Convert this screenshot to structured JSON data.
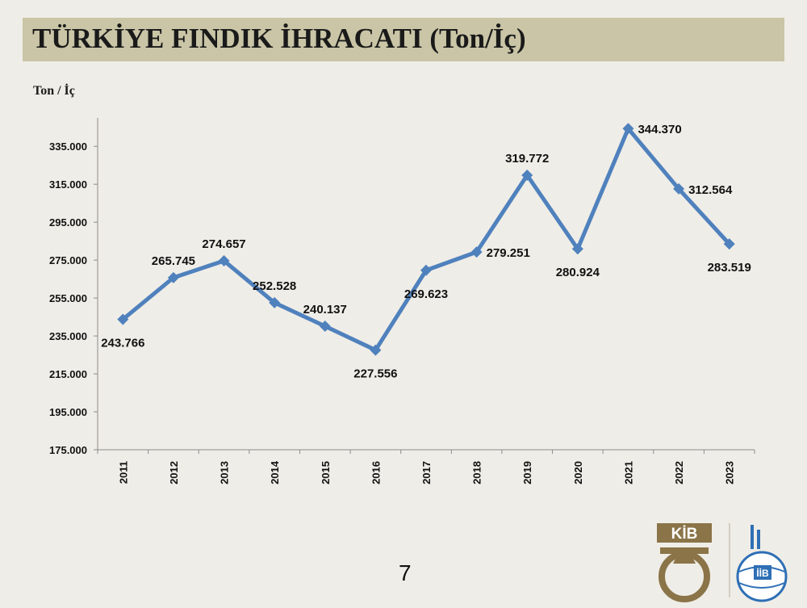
{
  "slide": {
    "title": "TÜRKİYE FINDIK İHRACATI (Ton/İç)",
    "page_number": "7"
  },
  "logos": {
    "left_text": "KİB",
    "right_text": "İİB"
  },
  "chart_data": {
    "type": "line",
    "title": "TÜRKİYE FINDIK İHRACATI (Ton/İç)",
    "xlabel": "",
    "ylabel": "Ton / İç",
    "categories": [
      "2011",
      "2012",
      "2013",
      "2014",
      "2015",
      "2016",
      "2017",
      "2018",
      "2019",
      "2020",
      "2021",
      "2022",
      "2023"
    ],
    "values": [
      243766,
      265745,
      274657,
      252528,
      240137,
      227556,
      269623,
      279251,
      319772,
      280924,
      344370,
      312564,
      283519
    ],
    "data_labels": [
      "243.766",
      "265.745",
      "274.657",
      "252.528",
      "240.137",
      "227.556",
      "269.623",
      "279.251",
      "319.772",
      "280.924",
      "344.370",
      "312.564",
      "283.519"
    ],
    "ylim": [
      175000,
      350000
    ],
    "yticks": [
      175000,
      195000,
      215000,
      235000,
      255000,
      275000,
      295000,
      315000,
      335000
    ],
    "ytick_labels": [
      "175.000",
      "195.000",
      "215.000",
      "235.000",
      "255.000",
      "275.000",
      "295.000",
      "315.000",
      "335.000"
    ],
    "grid": false,
    "legend": "none",
    "series_color": "#4f81bd"
  }
}
